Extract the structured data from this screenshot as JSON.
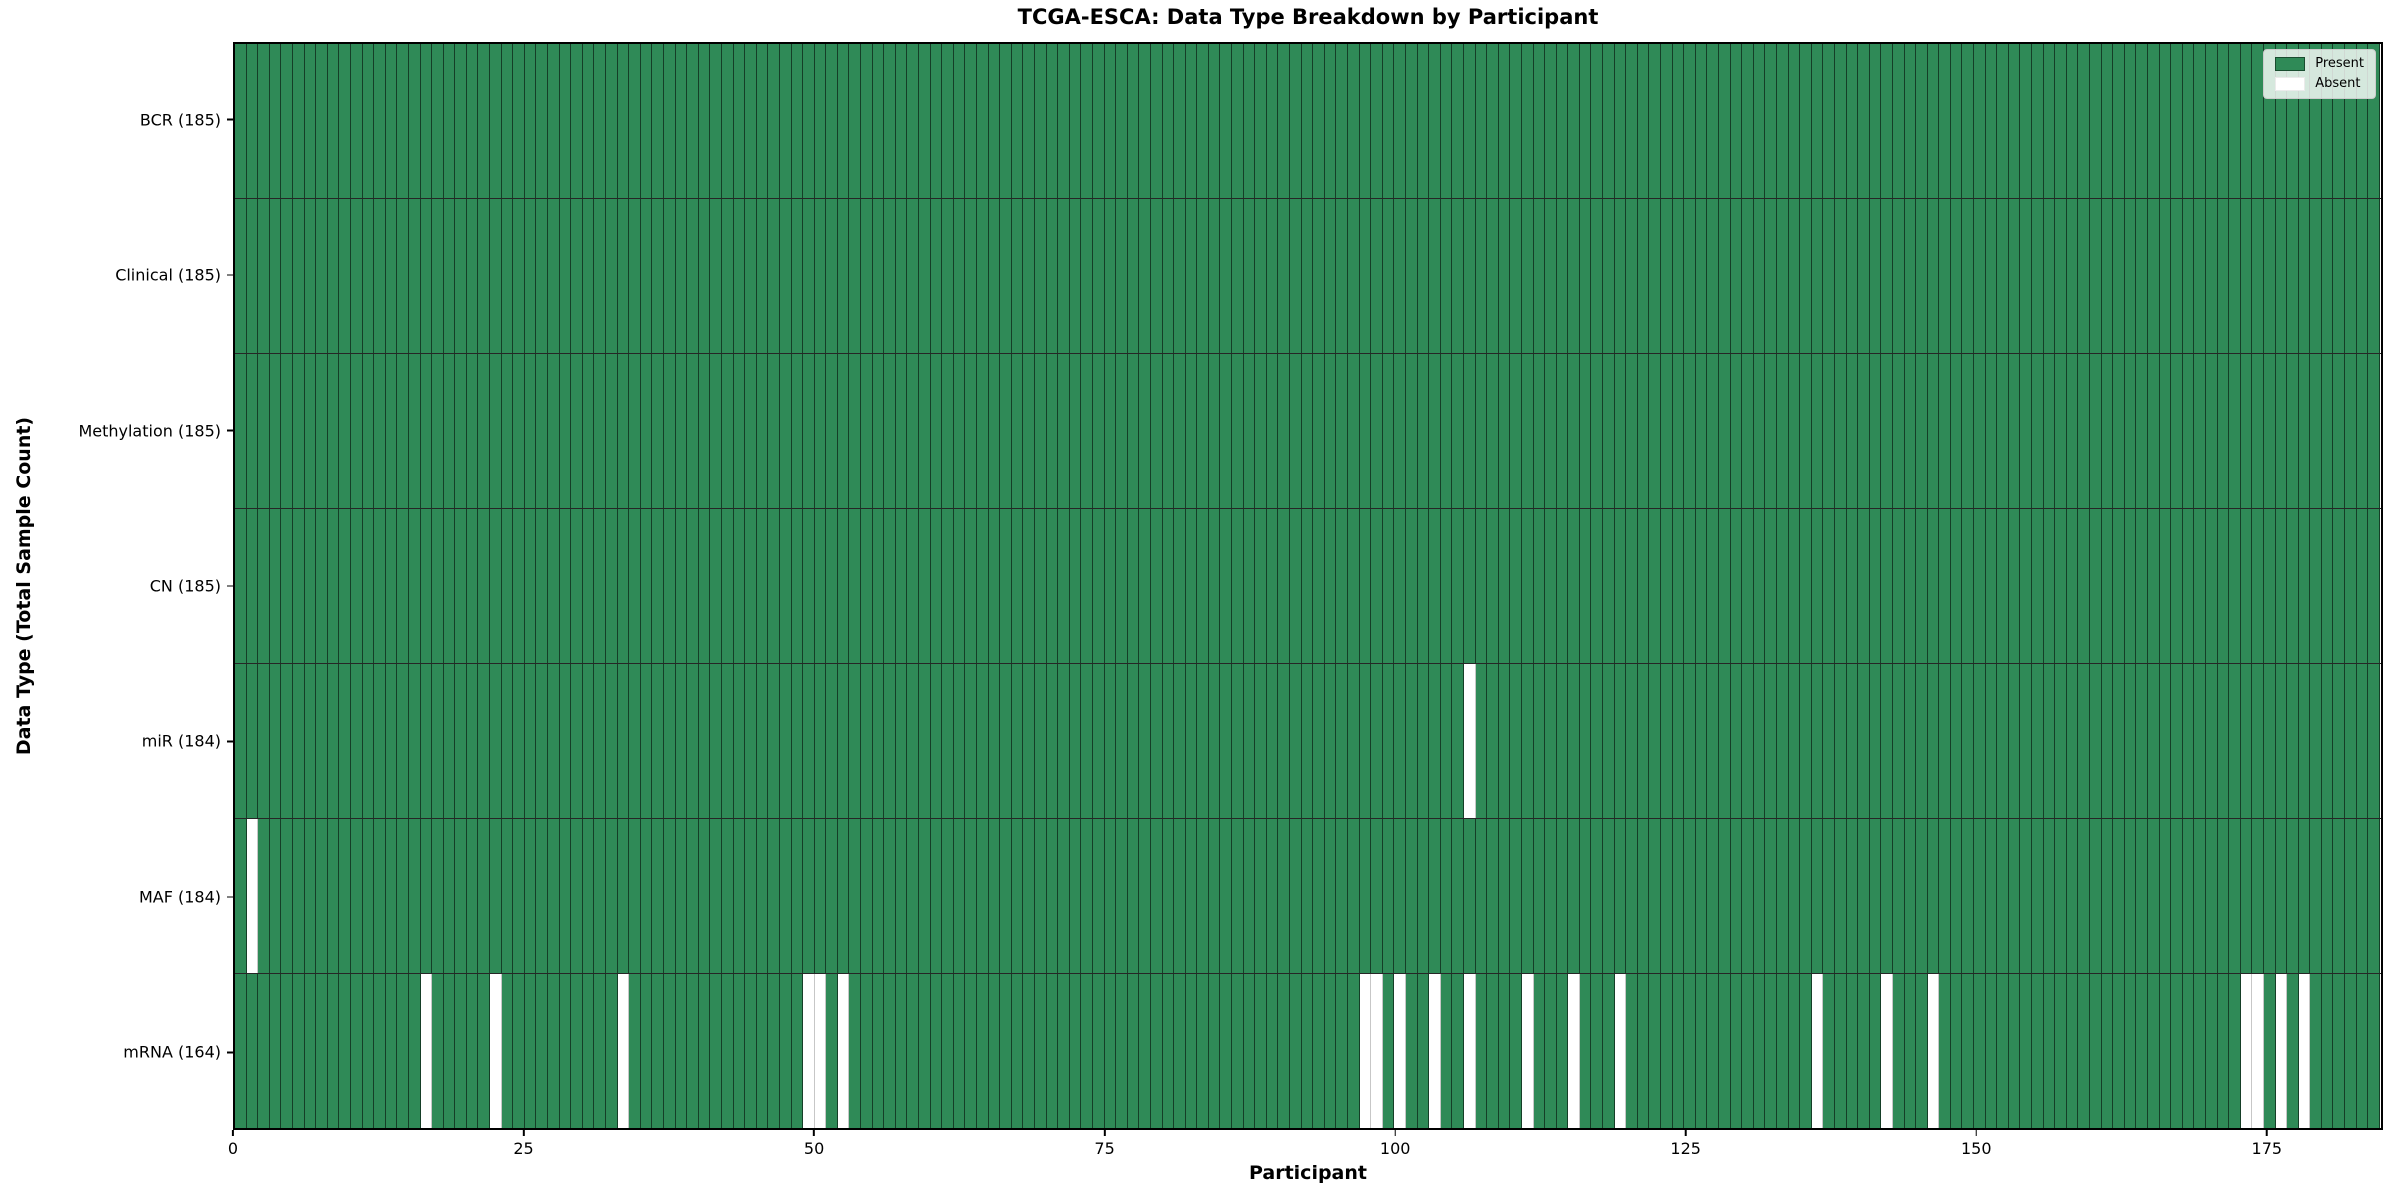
{
  "title": "TCGA-ESCA: Data Type Breakdown by Participant",
  "xlabel": "Participant",
  "ylabel": "Data Type (Total Sample Count)",
  "colors": {
    "present": "#2f8a57",
    "absent": "#ffffff",
    "gridline": "rgba(0,0,0,0.55)",
    "row_divider": "#000000",
    "spine": "#000000"
  },
  "legend": {
    "position": "upper right",
    "entries": [
      {
        "label": "Present",
        "color": "#2f8a57"
      },
      {
        "label": "Absent",
        "color": "#ffffff"
      }
    ]
  },
  "chart_data": {
    "type": "heatmap",
    "title": "TCGA-ESCA: Data Type Breakdown by Participant",
    "xlabel": "Participant",
    "ylabel": "Data Type (Total Sample Count)",
    "x_range": [
      0,
      185
    ],
    "n_participants": 185,
    "x_ticks": [
      0,
      25,
      50,
      75,
      100,
      125,
      150,
      175
    ],
    "grid": "cell-borders",
    "legend_position": "upper right",
    "value_encoding": {
      "present": 1,
      "absent": 0
    },
    "rows": [
      {
        "label": "BCR (185)",
        "count": 185,
        "absent_participants": []
      },
      {
        "label": "Clinical (185)",
        "count": 185,
        "absent_participants": []
      },
      {
        "label": "Methylation (185)",
        "count": 185,
        "absent_participants": []
      },
      {
        "label": "CN (185)",
        "count": 185,
        "absent_participants": []
      },
      {
        "label": "miR (184)",
        "count": 184,
        "absent_participants": [
          106
        ]
      },
      {
        "label": "MAF (184)",
        "count": 184,
        "absent_participants": [
          1
        ]
      },
      {
        "label": "mRNA (164)",
        "count": 164,
        "absent_participants": [
          16,
          22,
          33,
          49,
          50,
          52,
          97,
          98,
          100,
          103,
          106,
          111,
          115,
          119,
          136,
          142,
          146,
          173,
          174,
          176,
          178
        ]
      }
    ]
  }
}
